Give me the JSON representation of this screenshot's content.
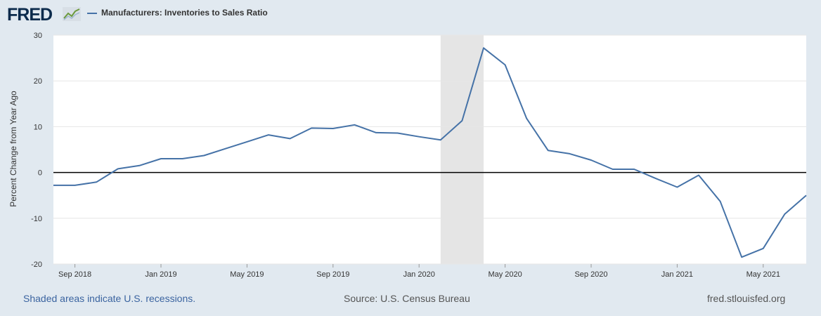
{
  "header": {
    "logo_text": "FRED",
    "legend_label": "Manufacturers: Inventories to Sales Ratio"
  },
  "footer": {
    "recession_note": "Shaded areas indicate U.S. recessions.",
    "source": "Source: U.S. Census Bureau",
    "site": "fred.stlouisfed.org"
  },
  "colors": {
    "series": "#4572a7",
    "recession": "#e5e5e5",
    "page_bg": "#e1e9f0",
    "zero_line": "#000000"
  },
  "chart_data": {
    "type": "line",
    "ylabel": "Percent Change from Year Ago",
    "ylim": [
      -20,
      30
    ],
    "yticks": [
      30,
      20,
      10,
      0,
      -10,
      -20
    ],
    "xlim": [
      "2018-08",
      "2021-07"
    ],
    "xticks": [
      {
        "date": "2018-09",
        "label": "Sep 2018"
      },
      {
        "date": "2019-01",
        "label": "Jan 2019"
      },
      {
        "date": "2019-05",
        "label": "May 2019"
      },
      {
        "date": "2019-09",
        "label": "Sep 2019"
      },
      {
        "date": "2020-01",
        "label": "Jan 2020"
      },
      {
        "date": "2020-05",
        "label": "May 2020"
      },
      {
        "date": "2020-09",
        "label": "Sep 2020"
      },
      {
        "date": "2021-01",
        "label": "Jan 2021"
      },
      {
        "date": "2021-05",
        "label": "May 2021"
      }
    ],
    "grid": true,
    "recessions": [
      {
        "start": "2020-02",
        "end": "2020-04"
      }
    ],
    "series": [
      {
        "name": "Manufacturers: Inventories to Sales Ratio",
        "x": [
          "2018-08",
          "2018-09",
          "2018-10",
          "2018-11",
          "2018-12",
          "2019-01",
          "2019-02",
          "2019-03",
          "2019-04",
          "2019-05",
          "2019-06",
          "2019-07",
          "2019-08",
          "2019-09",
          "2019-10",
          "2019-11",
          "2019-12",
          "2020-01",
          "2020-02",
          "2020-03",
          "2020-04",
          "2020-05",
          "2020-06",
          "2020-07",
          "2020-08",
          "2020-09",
          "2020-10",
          "2020-11",
          "2020-12",
          "2021-01",
          "2021-02",
          "2021-03",
          "2021-04",
          "2021-05",
          "2021-06",
          "2021-07"
        ],
        "y": [
          -2.8,
          -2.8,
          -2.1,
          0.8,
          1.5,
          3.0,
          3.0,
          3.7,
          5.2,
          6.7,
          8.2,
          7.4,
          9.7,
          9.6,
          10.4,
          8.7,
          8.6,
          7.8,
          7.1,
          11.3,
          27.2,
          23.5,
          11.8,
          4.8,
          4.1,
          2.7,
          0.7,
          0.7,
          -1.3,
          -3.2,
          -0.6,
          -6.3,
          -18.5,
          -16.6,
          -9.1,
          -5.0
        ]
      }
    ]
  }
}
